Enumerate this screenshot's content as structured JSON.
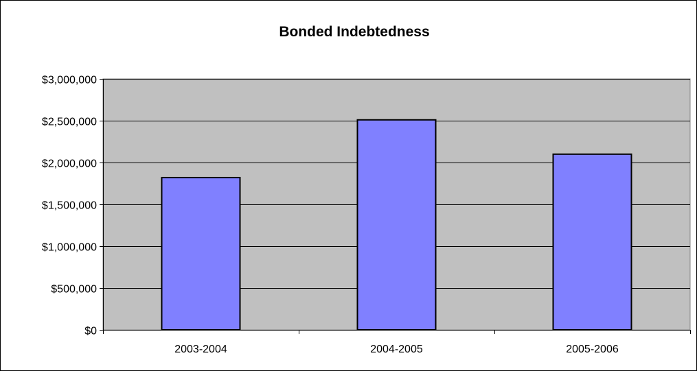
{
  "chart_data": {
    "type": "bar",
    "title": "Bonded Indebtedness",
    "xlabel": "",
    "ylabel": "",
    "categories": [
      "2003-2004",
      "2004-2005",
      "2005-2006"
    ],
    "values": [
      1820000,
      2510000,
      2100000
    ],
    "ylim": [
      0,
      3000000
    ],
    "yticks": [
      0,
      500000,
      1000000,
      1500000,
      2000000,
      2500000,
      3000000
    ],
    "ytick_labels": [
      "$0",
      "$500,000",
      "$1,000,000",
      "$1,500,000",
      "$2,000,000",
      "$2,500,000",
      "$3,000,000"
    ],
    "grid": "horizontal",
    "legend": "none",
    "colors": {
      "bar": "#8080ff",
      "plot_area": "#c0c0c0",
      "gridline": "#000000"
    }
  }
}
